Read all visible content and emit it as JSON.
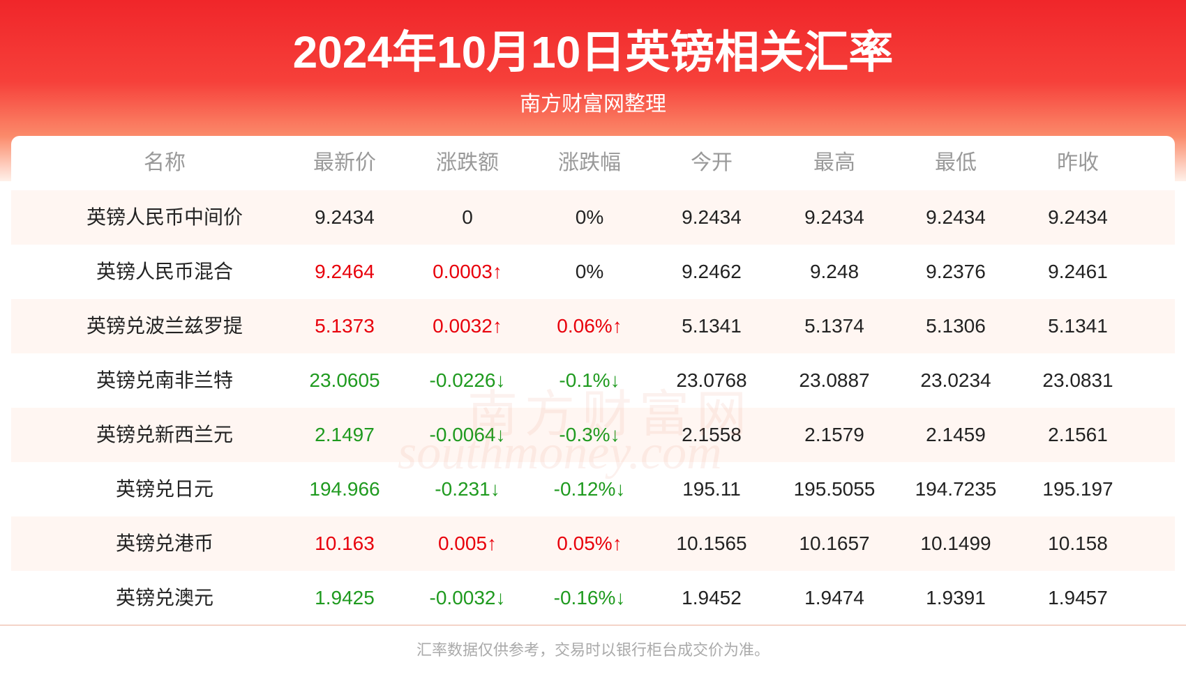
{
  "header": {
    "title": "2024年10月10日英镑相关汇率",
    "subtitle": "南方财富网整理"
  },
  "table": {
    "columns": [
      "名称",
      "最新价",
      "涨跌额",
      "涨跌幅",
      "今开",
      "最高",
      "最低",
      "昨收"
    ],
    "rows": [
      [
        "英镑人民币中间价",
        "9.2434",
        "0",
        "0%",
        "9.2434",
        "9.2434",
        "9.2434",
        "9.2434"
      ],
      [
        "英镑人民币混合",
        "9.2464",
        "0.0003↑",
        "0%",
        "9.2462",
        "9.248",
        "9.2376",
        "9.2461"
      ],
      [
        "英镑兑波兰兹罗提",
        "5.1373",
        "0.0032↑",
        "0.06%↑",
        "5.1341",
        "5.1374",
        "5.1306",
        "5.1341"
      ],
      [
        "英镑兑南非兰特",
        "23.0605",
        "-0.0226↓",
        "-0.1%↓",
        "23.0768",
        "23.0887",
        "23.0234",
        "23.0831"
      ],
      [
        "英镑兑新西兰元",
        "2.1497",
        "-0.0064↓",
        "-0.3%↓",
        "2.1558",
        "2.1579",
        "2.1459",
        "2.1561"
      ],
      [
        "英镑兑日元",
        "194.966",
        "-0.231↓",
        "-0.12%↓",
        "195.11",
        "195.5055",
        "194.7235",
        "195.197"
      ],
      [
        "英镑兑港币",
        "10.163",
        "0.005↑",
        "0.05%↑",
        "10.1565",
        "10.1657",
        "10.1499",
        "10.158"
      ],
      [
        "英镑兑澳元",
        "1.9425",
        "-0.0032↓",
        "-0.16%↓",
        "1.9452",
        "1.9474",
        "1.9391",
        "1.9457"
      ]
    ]
  },
  "watermark": {
    "brand": "南方财富网",
    "domain": "southmoney.com"
  },
  "footer": {
    "note": "汇率数据仅供参考，交易时以银行柜台成交价为准。"
  }
}
